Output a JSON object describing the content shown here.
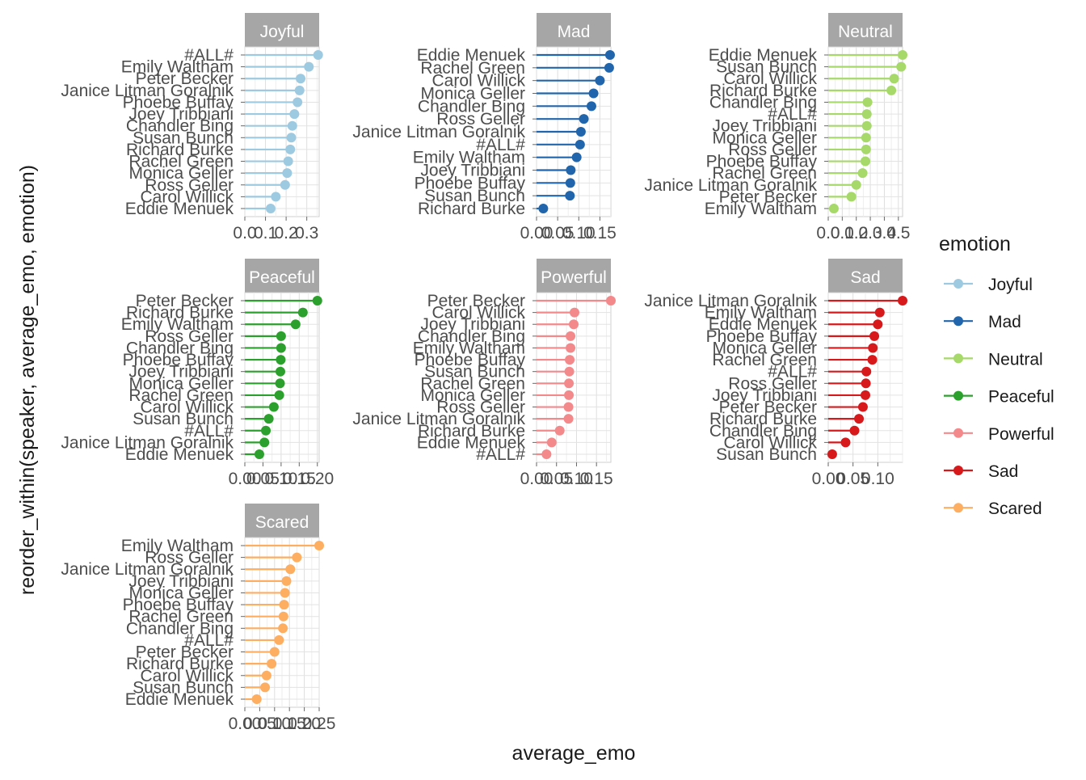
{
  "chart_data": {
    "type": "lollipop",
    "xlabel": "average_emo",
    "ylabel": "reorder_within(speaker, average_emo, emotion)",
    "legend": {
      "title": "emotion",
      "position": "right"
    },
    "colors": {
      "Joyful": "#9ecae1",
      "Mad": "#2166ac",
      "Neutral": "#a6d96a",
      "Peaceful": "#2ca02c",
      "Powerful": "#f4898c",
      "Sad": "#d7191c",
      "Scared": "#fdae61"
    },
    "facets": [
      {
        "name": "Joyful",
        "xlim": [
          0,
          0.36
        ],
        "xticks": [
          0.0,
          0.1,
          0.2,
          0.3
        ],
        "xtick_labels": [
          "0.0",
          "0.1",
          "0.2",
          "0.3"
        ],
        "speakers": [
          "#ALL#",
          "Emily Waltham",
          "Peter Becker",
          "Janice Litman Goralnik",
          "Phoebe Buffay",
          "Joey Tribbiani",
          "Chandler Bing",
          "Susan Bunch",
          "Richard Burke",
          "Rachel Green",
          "Monica Geller",
          "Ross Geller",
          "Carol Willick",
          "Eddie Menuek"
        ],
        "values": [
          0.355,
          0.31,
          0.27,
          0.265,
          0.255,
          0.24,
          0.23,
          0.225,
          0.22,
          0.21,
          0.205,
          0.195,
          0.15,
          0.125
        ]
      },
      {
        "name": "Mad",
        "xlim": [
          0,
          0.176
        ],
        "xticks": [
          0.0,
          0.05,
          0.1,
          0.15
        ],
        "xtick_labels": [
          "0.00",
          "0.05",
          "0.10",
          "0.15"
        ],
        "speakers": [
          "Eddie Menuek",
          "Rachel Green",
          "Carol Willick",
          "Monica Geller",
          "Chandler Bing",
          "Ross Geller",
          "Janice Litman Goralnik",
          "#ALL#",
          "Emily Waltham",
          "Joey Tribbiani",
          "Phoebe Buffay",
          "Susan Bunch",
          "Richard Burke"
        ],
        "values": [
          0.174,
          0.172,
          0.15,
          0.135,
          0.13,
          0.112,
          0.105,
          0.103,
          0.095,
          0.081,
          0.08,
          0.079,
          0.016
        ]
      },
      {
        "name": "Neutral",
        "xlim": [
          0,
          0.53
        ],
        "xticks": [
          0.0,
          0.1,
          0.2,
          0.3,
          0.4,
          0.5
        ],
        "xtick_labels": [
          "0.0",
          "0.1",
          "0.2",
          "0.3",
          "0.4",
          "0.5"
        ],
        "speakers": [
          "Eddie Menuek",
          "Susan Bunch",
          "Carol Willick",
          "Richard Burke",
          "Chandler Bing",
          "#ALL#",
          "Joey Tribbiani",
          "Monica Geller",
          "Ross Geller",
          "Phoebe Buffay",
          "Rachel Green",
          "Janice Litman Goralnik",
          "Peter Becker",
          "Emily Waltham"
        ],
        "values": [
          0.53,
          0.52,
          0.47,
          0.45,
          0.28,
          0.275,
          0.275,
          0.27,
          0.27,
          0.265,
          0.245,
          0.2,
          0.165,
          0.04
        ]
      },
      {
        "name": "Peaceful",
        "xlim": [
          0,
          0.205
        ],
        "xticks": [
          0.0,
          0.05,
          0.1,
          0.15,
          0.2
        ],
        "xtick_labels": [
          "0.00",
          "0.05",
          "0.10",
          "0.15",
          "0.20"
        ],
        "speakers": [
          "Peter Becker",
          "Richard Burke",
          "Emily Waltham",
          "Ross Geller",
          "Chandler Bing",
          "Phoebe Buffay",
          "Joey Tribbiani",
          "Monica Geller",
          "Rachel Green",
          "Carol Willick",
          "Susan Bunch",
          "#ALL#",
          "Janice Litman Goralnik",
          "Eddie Menuek"
        ],
        "values": [
          0.2,
          0.16,
          0.14,
          0.1,
          0.1,
          0.099,
          0.098,
          0.097,
          0.095,
          0.08,
          0.066,
          0.058,
          0.054,
          0.04
        ]
      },
      {
        "name": "Powerful",
        "xlim": [
          0,
          0.186
        ],
        "xticks": [
          0.0,
          0.05,
          0.1,
          0.15
        ],
        "xtick_labels": [
          "0.00",
          "0.05",
          "0.10",
          "0.15"
        ],
        "speakers": [
          "Peter Becker",
          "Carol Willick",
          "Joey Tribbiani",
          "Chandler Bing",
          "Emily Waltham",
          "Phoebe Buffay",
          "Susan Bunch",
          "Rachel Green",
          "Monica Geller",
          "Ross Geller",
          "Janice Litman Goralnik",
          "Richard Burke",
          "Eddie Menuek",
          "#ALL#"
        ],
        "values": [
          0.186,
          0.095,
          0.093,
          0.085,
          0.085,
          0.083,
          0.082,
          0.081,
          0.081,
          0.08,
          0.08,
          0.058,
          0.038,
          0.025
        ]
      },
      {
        "name": "Sad",
        "xlim": [
          0,
          0.15
        ],
        "xticks": [
          0.0,
          0.05,
          0.1
        ],
        "xtick_labels": [
          "0.00",
          "0.05",
          "0.10"
        ],
        "speakers": [
          "Janice Litman Goralnik",
          "Emily Waltham",
          "Eddie Menuek",
          "Phoebe Buffay",
          "Monica Geller",
          "Rachel Green",
          "#ALL#",
          "Ross Geller",
          "Joey Tribbiani",
          "Peter Becker",
          "Richard Burke",
          "Chandler Bing",
          "Carol Willick",
          "Susan Bunch"
        ],
        "values": [
          0.15,
          0.104,
          0.1,
          0.093,
          0.09,
          0.089,
          0.077,
          0.076,
          0.075,
          0.07,
          0.062,
          0.053,
          0.035,
          0.008
        ]
      },
      {
        "name": "Scared",
        "xlim": [
          0,
          0.25
        ],
        "xticks": [
          0.0,
          0.05,
          0.1,
          0.15,
          0.2,
          0.25
        ],
        "xtick_labels": [
          "0.00",
          "0.05",
          "0.10",
          "0.15",
          "0.20",
          "0.25"
        ],
        "speakers": [
          "Emily Waltham",
          "Ross Geller",
          "Janice Litman Goralnik",
          "Joey Tribbiani",
          "Monica Geller",
          "Phoebe Buffay",
          "Rachel Green",
          "Chandler Bing",
          "#ALL#",
          "Peter Becker",
          "Richard Burke",
          "Carol Willick",
          "Susan Bunch",
          "Eddie Menuek"
        ],
        "values": [
          0.25,
          0.175,
          0.153,
          0.14,
          0.135,
          0.132,
          0.13,
          0.128,
          0.115,
          0.1,
          0.09,
          0.073,
          0.068,
          0.04
        ]
      }
    ]
  }
}
